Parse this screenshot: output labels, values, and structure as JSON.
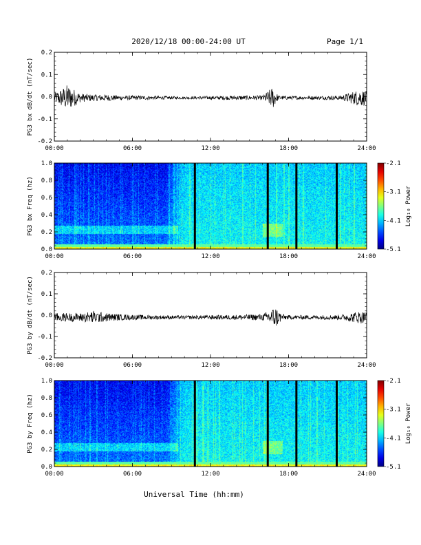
{
  "header": {
    "title": "2020/12/18  00:00-24:00 UT",
    "page": "Page 1/1"
  },
  "footer": {
    "xlabel": "Universal Time (hh:mm)"
  },
  "chart_data": [
    {
      "type": "line",
      "ylabel": "PG3 bx dB/dt (nT/sec)",
      "xlim": [
        0,
        24
      ],
      "ylim": [
        -0.2,
        0.2
      ],
      "x_ticks": [
        "00:00",
        "06:00",
        "12:00",
        "18:00",
        "24:00"
      ],
      "y_ticks": [
        "-0.2",
        "-0.1",
        "0.0",
        "0.1",
        "0.2"
      ],
      "grid": false,
      "series": [
        {
          "x": [
            0,
            1,
            2,
            3,
            4,
            5,
            6,
            8,
            10,
            12,
            14,
            16,
            16.8,
            17.2,
            18,
            20,
            22,
            23.5,
            24
          ],
          "y_envelope": [
            0.02,
            0.06,
            0.02,
            0.015,
            0.015,
            0.01,
            0.01,
            0.008,
            0.006,
            0.008,
            0.01,
            0.01,
            0.05,
            0.01,
            0.008,
            0.008,
            0.01,
            0.04,
            0.03
          ],
          "y_center": -0.005
        }
      ]
    },
    {
      "type": "heatmap",
      "ylabel": "PG3 bx Freq (hz)",
      "xlim": [
        0,
        24
      ],
      "ylim": [
        0.0,
        1.0
      ],
      "x_ticks": [
        "00:00",
        "06:00",
        "12:00",
        "18:00",
        "24:00"
      ],
      "y_ticks": [
        "0.0",
        "0.2",
        "0.4",
        "0.6",
        "0.8",
        "1.0"
      ],
      "colorbar": {
        "label": "Log₁₀ Power",
        "min": -5.1,
        "max": -2.1,
        "ticks": [
          "-2.1",
          "-3.1",
          "-4.1",
          "-5.1"
        ]
      },
      "data_gaps_hours": [
        10.8,
        16.4,
        18.6,
        21.7
      ]
    },
    {
      "type": "line",
      "ylabel": "PG3 by dB/dt (nT/sec)",
      "xlim": [
        0,
        24
      ],
      "ylim": [
        -0.2,
        0.2
      ],
      "x_ticks": [
        "00:00",
        "06:00",
        "12:00",
        "18:00",
        "24:00"
      ],
      "y_ticks": [
        "-0.2",
        "-0.1",
        "0.0",
        "0.1",
        "0.2"
      ],
      "grid": false,
      "series": [
        {
          "x": [
            0,
            1,
            2,
            3,
            4,
            5,
            6,
            8,
            10,
            12,
            14,
            16,
            17,
            17.5,
            18,
            20,
            22,
            23.5,
            24
          ],
          "y_envelope": [
            0.02,
            0.02,
            0.02,
            0.03,
            0.02,
            0.015,
            0.012,
            0.01,
            0.008,
            0.01,
            0.012,
            0.015,
            0.05,
            0.015,
            0.01,
            0.01,
            0.012,
            0.03,
            0.025
          ],
          "y_center": -0.01
        }
      ]
    },
    {
      "type": "heatmap",
      "ylabel": "PG3 by Freq (hz)",
      "xlim": [
        0,
        24
      ],
      "ylim": [
        0.0,
        1.0
      ],
      "x_ticks": [
        "00:00",
        "06:00",
        "12:00",
        "18:00",
        "24:00"
      ],
      "y_ticks": [
        "0.0",
        "0.2",
        "0.4",
        "0.6",
        "0.8",
        "1.0"
      ],
      "colorbar": {
        "label": "Log₁₀ Power",
        "min": -5.1,
        "max": -2.1,
        "ticks": [
          "-2.1",
          "-3.1",
          "-4.1",
          "-5.1"
        ]
      },
      "data_gaps_hours": [
        10.8,
        16.4,
        18.6,
        21.7
      ]
    }
  ]
}
